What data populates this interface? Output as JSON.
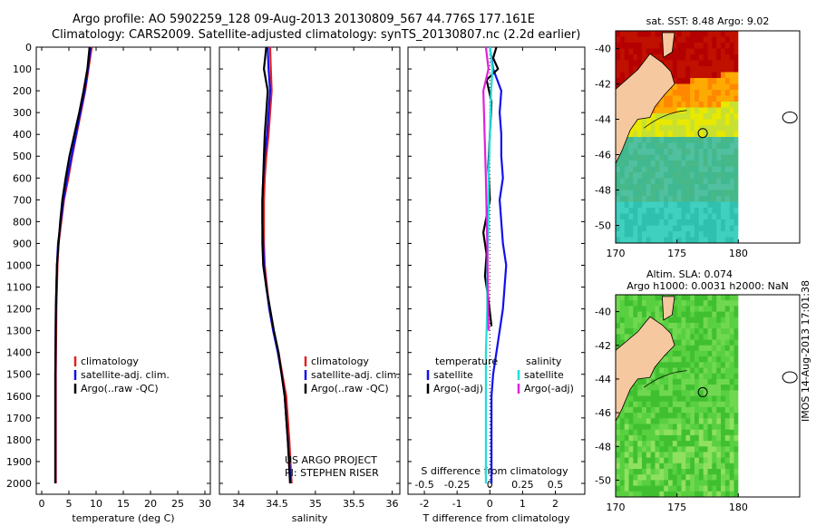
{
  "header": {
    "line1": "Argo profile: AO 5902259_128 09-Aug-2013 20130809_567 44.776S 177.161E",
    "line2": "Climatology: CARS2009. Satellite-adjusted climatology: synTS_20130807.nc (2.2d earlier)"
  },
  "side_stamp": "IMOS 14-Aug-2013 17:01:38",
  "colors": {
    "climatology": "#e02020",
    "satellite": "#1010ee",
    "argo": "#000000",
    "salinity_sat": "#22dddd",
    "salinity_argo": "#dd22dd"
  },
  "chart_data": [
    {
      "type": "line",
      "id": "temperature",
      "xlabel": "temperature (deg C)",
      "ylabel": "",
      "xlim": [
        -1,
        31
      ],
      "ylim": [
        2050,
        0
      ],
      "xticks": [
        "0",
        "5",
        "10",
        "15",
        "20",
        "25",
        "30"
      ],
      "yticks": [
        "0",
        "100",
        "200",
        "300",
        "400",
        "500",
        "600",
        "700",
        "800",
        "900",
        "1000",
        "1100",
        "1200",
        "1300",
        "1400",
        "1500",
        "1600",
        "1700",
        "1800",
        "1900",
        "2000"
      ],
      "legend": [
        "climatology",
        "satellite-adj. clim.",
        "Argo(..raw -QC)"
      ],
      "series": [
        {
          "key": "climatology",
          "x": [
            9.2,
            8.6,
            8.0,
            7.2,
            6.4,
            5.6,
            4.9,
            4.1,
            3.6,
            3.1,
            2.9,
            2.7,
            2.6,
            2.6
          ],
          "y": [
            0,
            100,
            200,
            300,
            400,
            500,
            600,
            700,
            800,
            900,
            1000,
            1200,
            1500,
            2000
          ]
        },
        {
          "key": "satellite",
          "x": [
            9.0,
            8.5,
            7.9,
            7.1,
            6.3,
            5.5,
            4.7,
            4.0,
            3.5,
            3.0,
            2.8,
            2.6,
            2.5,
            2.5
          ],
          "y": [
            0,
            100,
            200,
            300,
            400,
            500,
            600,
            700,
            800,
            900,
            1000,
            1200,
            1500,
            2000
          ]
        },
        {
          "key": "argo",
          "x": [
            8.8,
            8.4,
            7.7,
            6.9,
            6.0,
            5.1,
            4.4,
            3.8,
            3.4,
            3.1,
            2.8,
            2.6,
            2.5,
            2.5
          ],
          "y": [
            0,
            100,
            200,
            300,
            400,
            500,
            600,
            700,
            800,
            900,
            1000,
            1200,
            1500,
            2000
          ]
        }
      ]
    },
    {
      "type": "line",
      "id": "salinity",
      "xlabel": "salinity",
      "ylabel": "",
      "xlim": [
        33.75,
        36.1
      ],
      "ylim": [
        2050,
        0
      ],
      "xticks": [
        "34",
        "34.5",
        "35",
        "35.5",
        "36"
      ],
      "legend": [
        "climatology",
        "satellite-adj. clim.",
        "Argo(..raw -QC)"
      ],
      "notes": [
        "US ARGO PROJECT",
        "PI: STEPHEN RISER"
      ],
      "series": [
        {
          "key": "climatology",
          "x": [
            34.41,
            34.42,
            34.43,
            34.41,
            34.39,
            34.36,
            34.34,
            34.33,
            34.33,
            34.33,
            34.34,
            34.37,
            34.4,
            34.45,
            34.52,
            34.57,
            34.62,
            34.66,
            34.69
          ],
          "y": [
            0,
            100,
            200,
            300,
            400,
            500,
            600,
            700,
            800,
            900,
            1000,
            1100,
            1200,
            1300,
            1400,
            1500,
            1600,
            1800,
            2000
          ]
        },
        {
          "key": "satellite",
          "x": [
            34.38,
            34.39,
            34.41,
            34.39,
            34.37,
            34.34,
            34.32,
            34.31,
            34.31,
            34.32,
            34.33,
            34.36,
            34.4,
            34.45,
            34.51,
            34.56,
            34.6,
            34.64,
            34.68
          ],
          "y": [
            0,
            100,
            200,
            300,
            400,
            500,
            600,
            700,
            800,
            900,
            1000,
            1100,
            1200,
            1300,
            1400,
            1500,
            1600,
            1800,
            2000
          ]
        },
        {
          "key": "argo",
          "x": [
            34.36,
            34.33,
            34.38,
            34.36,
            34.34,
            34.33,
            34.32,
            34.31,
            34.31,
            34.31,
            34.32,
            34.36,
            34.41,
            34.46,
            34.52,
            34.56,
            34.6,
            34.64,
            34.67
          ],
          "y": [
            0,
            100,
            200,
            300,
            400,
            500,
            600,
            700,
            800,
            900,
            1000,
            1100,
            1200,
            1300,
            1400,
            1500,
            1600,
            1800,
            2000
          ]
        }
      ]
    },
    {
      "type": "line",
      "id": "differences",
      "xlabel": "T difference from climatology",
      "xlabel_top": "S difference from climatology",
      "xlim": [
        -2.5,
        2.9
      ],
      "ylim": [
        2050,
        0
      ],
      "xticks": [
        "-2",
        "-1",
        "0",
        "1",
        "2"
      ],
      "xticks_top": [
        "-0.5",
        "-0.25",
        "0",
        "0.25",
        "0.5"
      ],
      "legend": {
        "temperature_title": "temperature",
        "salinity_title": "salinity",
        "satellite": "satellite",
        "argo": "Argo(-adj)"
      },
      "series": [
        {
          "key": "t_satellite",
          "x": [
            0.0,
            0.1,
            0.35,
            0.3,
            0.35,
            0.35,
            0.4,
            0.3,
            0.35,
            0.4,
            0.5,
            0.45,
            0.4,
            0.3,
            0.2,
            0.1,
            0.05,
            0.05,
            0.05
          ],
          "y": [
            0,
            100,
            200,
            300,
            400,
            500,
            600,
            700,
            800,
            900,
            1000,
            1100,
            1200,
            1300,
            1400,
            1500,
            1600,
            1800,
            2000
          ]
        },
        {
          "key": "t_argo",
          "x": [
            0.2,
            0.1,
            0.25,
            -0.1,
            0.05,
            0.0,
            -0.05,
            0.0,
            -0.2,
            -0.1,
            -0.15,
            -0.05,
            0.05
          ],
          "y": [
            0,
            50,
            100,
            150,
            250,
            400,
            550,
            700,
            850,
            950,
            1050,
            1150,
            1280
          ]
        },
        {
          "key": "s_satellite",
          "x": [
            0.0,
            0.02,
            0.01,
            0.0,
            -0.01,
            -0.01,
            -0.02,
            -0.02,
            -0.03,
            -0.03,
            -0.03,
            -0.03,
            -0.03
          ],
          "y": [
            0,
            100,
            200,
            400,
            600,
            800,
            1000,
            1200,
            1400,
            1600,
            1800,
            1900,
            2000
          ]
        },
        {
          "key": "s_argo",
          "x": [
            -0.03,
            -0.01,
            -0.05,
            -0.04,
            -0.03,
            -0.02,
            -0.01
          ],
          "y": [
            0,
            100,
            200,
            400,
            600,
            900,
            1300
          ]
        }
      ]
    },
    {
      "type": "heatmap",
      "id": "sst_map",
      "title": "sat. SST: 8.48 Argo: 9.02",
      "xlim": [
        170,
        185
      ],
      "ylim": [
        -51,
        -39
      ],
      "xticks": [
        "170",
        "175",
        "180"
      ],
      "yticks": [
        "-40",
        "-42",
        "-44",
        "-46",
        "-48",
        "-50"
      ]
    },
    {
      "type": "heatmap",
      "id": "sla_map",
      "title": "Altim. SLA: 0.074",
      "subtitle": "Argo h1000: 0.0031 h2000: NaN",
      "xlim": [
        170,
        185
      ],
      "ylim": [
        -51,
        -39
      ],
      "xticks": [
        "170",
        "175",
        "180"
      ],
      "yticks": [
        "-40",
        "-42",
        "-44",
        "-46",
        "-48",
        "-50"
      ]
    }
  ]
}
